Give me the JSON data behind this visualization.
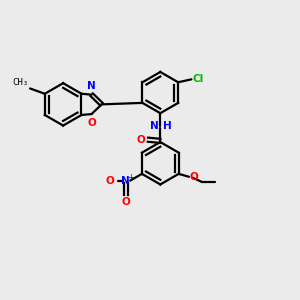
{
  "background_color": "#ebebeb",
  "bond_color": "#000000",
  "atom_colors": {
    "N": "#0000ff",
    "O": "#ff0000",
    "Cl": "#00bb00",
    "C": "#000000"
  },
  "figsize": [
    3.0,
    3.0
  ],
  "dpi": 100
}
